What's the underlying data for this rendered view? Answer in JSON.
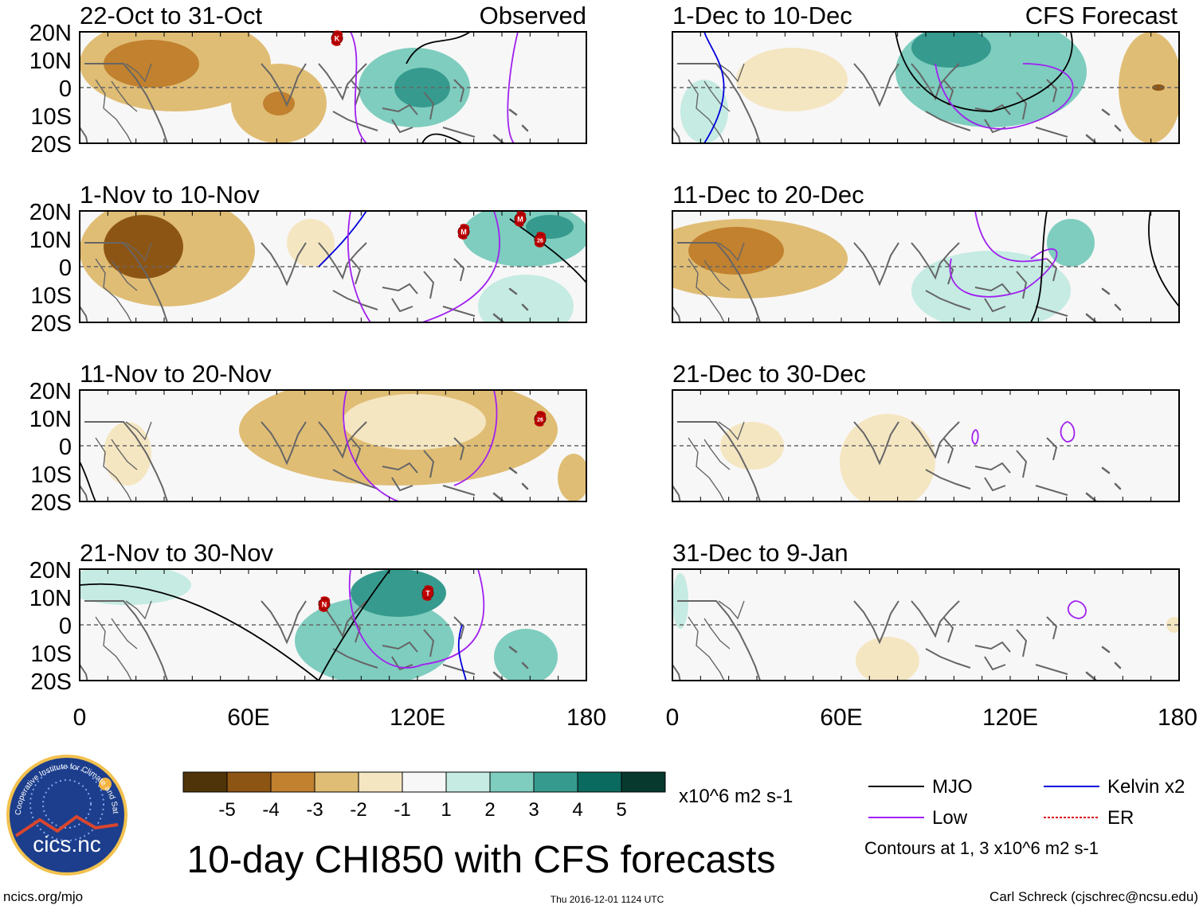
{
  "headers": {
    "left": "Observed",
    "right": "CFS Forecast"
  },
  "panels": [
    {
      "period": "22-Oct to 31-Oct",
      "storms": [
        "K"
      ]
    },
    {
      "period": "1-Nov to 10-Nov",
      "storms": [
        "M",
        "M",
        "26"
      ]
    },
    {
      "period": "11-Nov to 20-Nov",
      "storms": [
        "26"
      ]
    },
    {
      "period": "21-Nov to 30-Nov",
      "storms": [
        "N",
        "T"
      ]
    },
    {
      "period": "1-Dec to 10-Dec",
      "storms": []
    },
    {
      "period": "11-Dec to 20-Dec",
      "storms": []
    },
    {
      "period": "21-Dec to 30-Dec",
      "storms": []
    },
    {
      "period": "31-Dec to 9-Jan",
      "storms": []
    }
  ],
  "axes": {
    "lat_labels": [
      "20N",
      "10N",
      "0",
      "10S",
      "20S"
    ],
    "lon_labels": [
      "0",
      "60E",
      "120E",
      "180"
    ]
  },
  "colorbar": {
    "labels": [
      "-5",
      "-4",
      "-3",
      "-2",
      "-1",
      "1",
      "2",
      "3",
      "4",
      "5"
    ],
    "colors": [
      "#4f3409",
      "#8d5514",
      "#c1812f",
      "#e0bd75",
      "#f5e6c2",
      "#f7f7f7",
      "#c5ebe2",
      "#7ecdbf",
      "#369b8e",
      "#0b6a5f",
      "#07392f"
    ],
    "units": "x10^6 m2 s-1"
  },
  "legend": {
    "items": [
      {
        "label": "MJO",
        "color": "#000000"
      },
      {
        "label": "Kelvin x2",
        "color": "#0000dd"
      },
      {
        "label": "Low",
        "color": "#a020f0"
      },
      {
        "label": "ER",
        "color": "#dd0000"
      }
    ],
    "note": "Contours at 1, 3 x10^6 m2 s-1"
  },
  "title": "10-day CHI850 with CFS forecasts",
  "logo": {
    "text": "cics.nc",
    "ring_text": "Cooperative Institute for Climate and Satellites"
  },
  "footer": {
    "url": "ncics.org/mjo",
    "timestamp": "Thu 2016-12-01 1124 UTC",
    "credit": "Carl Schreck (cjschrec@ncsu.edu)"
  }
}
